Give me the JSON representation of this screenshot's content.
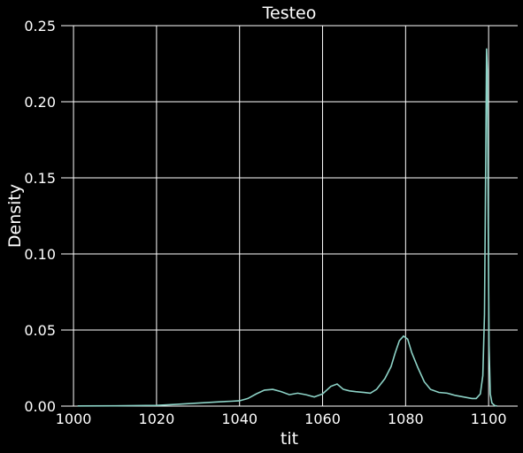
{
  "chart_data": {
    "type": "line",
    "title": "Testeo",
    "xlabel": "tit",
    "ylabel": "Density",
    "xlim": [
      997,
      1107
    ],
    "ylim": [
      0,
      0.25
    ],
    "xticks": [
      1000,
      1020,
      1040,
      1060,
      1080,
      1100
    ],
    "yticks": [
      0.0,
      0.05,
      0.1,
      0.15,
      0.2,
      0.25
    ],
    "xtick_labels": [
      "1000",
      "1020",
      "1040",
      "1060",
      "1080",
      "1100"
    ],
    "ytick_labels": [
      "0.00",
      "0.05",
      "0.10",
      "0.15",
      "0.20",
      "0.25"
    ],
    "grid": true,
    "series": [
      {
        "color": "#8dd3c7",
        "x": [
          1001,
          1010,
          1020,
          1025,
          1030,
          1035,
          1038,
          1040,
          1042,
          1044,
          1046,
          1048,
          1050,
          1052,
          1054,
          1056,
          1058,
          1060,
          1062,
          1063.5,
          1065,
          1066.5,
          1068,
          1070,
          1071.5,
          1073,
          1075,
          1076.5,
          1077.5,
          1078.5,
          1079.5,
          1080.5,
          1081.5,
          1083,
          1084.5,
          1086,
          1088,
          1090,
          1092,
          1094,
          1096,
          1097,
          1098,
          1098.6,
          1099,
          1099.3,
          1099.5,
          1099.7,
          1099.9,
          1100.1,
          1100.4,
          1100.8,
          1101.5,
          1102
        ],
        "y": [
          0.0001,
          0.0002,
          0.0005,
          0.0012,
          0.002,
          0.0028,
          0.0032,
          0.0035,
          0.005,
          0.008,
          0.0105,
          0.011,
          0.0095,
          0.0075,
          0.0085,
          0.0075,
          0.006,
          0.008,
          0.013,
          0.0145,
          0.011,
          0.01,
          0.0095,
          0.009,
          0.0085,
          0.011,
          0.018,
          0.026,
          0.035,
          0.043,
          0.046,
          0.044,
          0.035,
          0.025,
          0.016,
          0.011,
          0.009,
          0.0085,
          0.007,
          0.006,
          0.005,
          0.005,
          0.008,
          0.02,
          0.06,
          0.16,
          0.235,
          0.22,
          0.12,
          0.04,
          0.008,
          0.002,
          0.0003,
          0.0001
        ]
      }
    ]
  }
}
